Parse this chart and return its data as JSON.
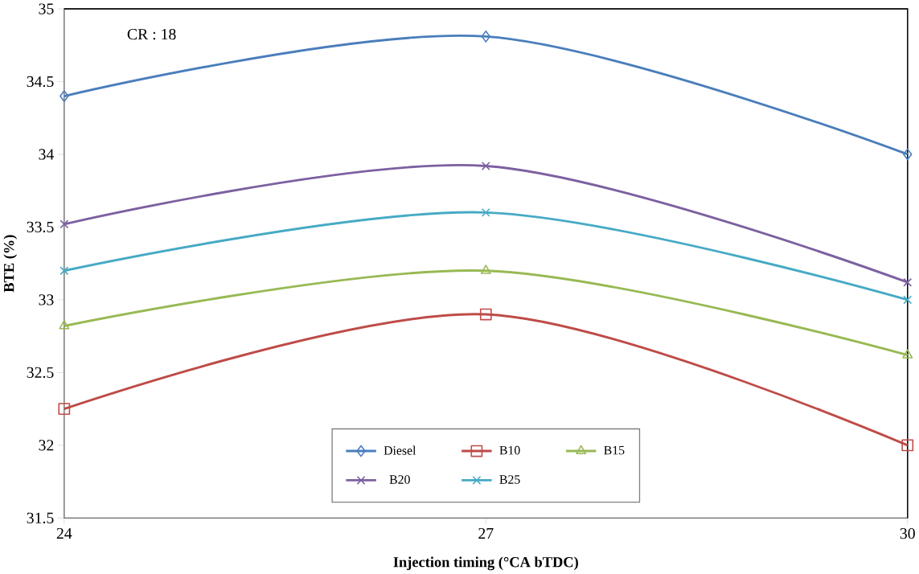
{
  "chart_data": {
    "type": "line",
    "xlabel": "Injection timing (°CA bTDC)",
    "ylabel": "BTE (%)",
    "annotations": [
      "CR  : 18"
    ],
    "x": [
      24,
      27,
      30
    ],
    "xlim": [
      24,
      30
    ],
    "xticks": [
      24,
      27,
      30
    ],
    "ylim": [
      31.5,
      35
    ],
    "yticks": [
      31.5,
      32,
      32.5,
      33,
      33.5,
      34,
      34.5,
      35
    ],
    "legend": "bottom",
    "grid": false,
    "line_style": "solid",
    "series": [
      {
        "name": "Diesel",
        "color": "#4a7ebb",
        "marker": "diamond",
        "values": [
          34.4,
          34.81,
          34.0
        ]
      },
      {
        "name": "B10",
        "color": "#be4b48",
        "marker": "square",
        "values": [
          32.25,
          32.9,
          32.0
        ]
      },
      {
        "name": "B15",
        "color": "#98b954",
        "marker": "triangle",
        "values": [
          32.82,
          33.2,
          32.62
        ]
      },
      {
        "name": "B20",
        "color": "#7d60a0",
        "marker": "cross",
        "values": [
          33.52,
          33.92,
          33.12
        ]
      },
      {
        "name": "B25",
        "color": "#46aac5",
        "marker": "cross",
        "values": [
          33.2,
          33.6,
          33.0
        ]
      }
    ]
  }
}
